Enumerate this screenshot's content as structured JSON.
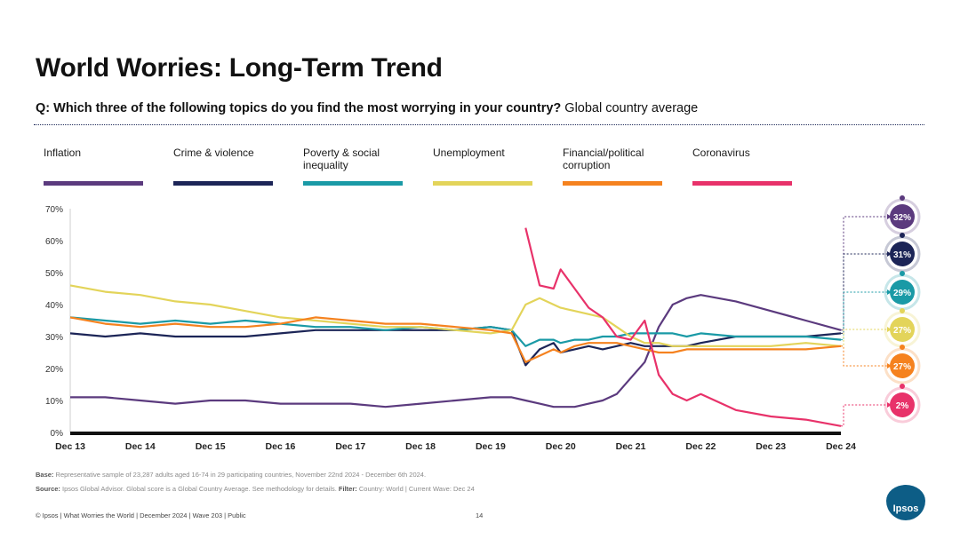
{
  "title": "World Worries: Long-Term Trend",
  "question": {
    "bold": "Q: Which three of the following topics do you find the most worrying in your country?",
    "normal": "Global country average"
  },
  "legend": [
    {
      "label": "Inflation",
      "color": "#5b3a7e"
    },
    {
      "label": "Crime & violence",
      "color": "#1c2557"
    },
    {
      "label": "Poverty & social inequality",
      "color": "#1a9aa6"
    },
    {
      "label": "Unemployment",
      "color": "#e3d45a"
    },
    {
      "label": "Financial/political corruption",
      "color": "#f5821f"
    },
    {
      "label": "Coronavirus",
      "color": "#e8326a"
    }
  ],
  "chart_data": {
    "type": "line",
    "title": "World Worries: Long-Term Trend",
    "ylabel": "",
    "xlabel": "",
    "ylim": [
      0,
      70
    ],
    "y_ticks": [
      "0%",
      "10%",
      "20%",
      "30%",
      "40%",
      "50%",
      "60%",
      "70%"
    ],
    "x_ticks": [
      "Dec 13",
      "Dec 14",
      "Dec 15",
      "Dec 16",
      "Dec 17",
      "Dec 18",
      "Dec 19",
      "Dec 20",
      "Dec 21",
      "Dec 22",
      "Dec 23",
      "Dec 24"
    ],
    "x": [
      0,
      0.5,
      1,
      1.5,
      2,
      2.5,
      3,
      3.5,
      4,
      4.5,
      5,
      5.5,
      6,
      6.3,
      6.5,
      6.7,
      6.9,
      7,
      7.2,
      7.4,
      7.6,
      7.8,
      8,
      8.2,
      8.4,
      8.6,
      8.8,
      9,
      9.5,
      10,
      10.5,
      11
    ],
    "series": [
      {
        "name": "Inflation",
        "color": "#5b3a7e",
        "end_label": "32%",
        "values": [
          11,
          11,
          10,
          9,
          10,
          10,
          9,
          9,
          9,
          8,
          9,
          10,
          11,
          11,
          10,
          9,
          8,
          8,
          8,
          9,
          10,
          12,
          17,
          22,
          33,
          40,
          42,
          43,
          41,
          38,
          35,
          32
        ]
      },
      {
        "name": "Crime & violence",
        "color": "#1c2557",
        "end_label": "31%",
        "values": [
          31,
          30,
          31,
          30,
          30,
          30,
          31,
          32,
          32,
          32,
          32,
          32,
          33,
          32,
          21,
          26,
          28,
          25,
          26,
          27,
          26,
          27,
          28,
          27,
          27,
          27,
          27,
          28,
          30,
          30,
          30,
          31
        ]
      },
      {
        "name": "Poverty & social inequality",
        "color": "#1a9aa6",
        "end_label": "29%",
        "values": [
          36,
          35,
          34,
          35,
          34,
          35,
          34,
          33,
          33,
          32,
          33,
          32,
          33,
          32,
          27,
          29,
          29,
          28,
          29,
          29,
          30,
          30,
          31,
          31,
          31,
          31,
          30,
          31,
          30,
          30,
          30,
          29
        ]
      },
      {
        "name": "Unemployment",
        "color": "#e3d45a",
        "end_label": "27%",
        "values": [
          46,
          44,
          43,
          41,
          40,
          38,
          36,
          35,
          34,
          33,
          33,
          32,
          31,
          32,
          40,
          42,
          40,
          39,
          38,
          37,
          36,
          33,
          30,
          28,
          28,
          27,
          27,
          27,
          27,
          27,
          28,
          27
        ]
      },
      {
        "name": "Financial/political corruption",
        "color": "#f5821f",
        "end_label": "27%",
        "values": [
          36,
          34,
          33,
          34,
          33,
          33,
          34,
          36,
          35,
          34,
          34,
          33,
          32,
          31,
          22,
          24,
          26,
          25,
          27,
          28,
          28,
          28,
          27,
          26,
          25,
          25,
          26,
          26,
          26,
          26,
          26,
          27
        ]
      },
      {
        "name": "Coronavirus",
        "color": "#e8326a",
        "end_label": "2%",
        "values": [
          null,
          null,
          null,
          null,
          null,
          null,
          null,
          null,
          null,
          null,
          null,
          null,
          null,
          null,
          64,
          46,
          45,
          51,
          45,
          39,
          36,
          30,
          29,
          35,
          18,
          12,
          10,
          12,
          7,
          5,
          4,
          2
        ]
      }
    ]
  },
  "footnotes": {
    "base_label": "Base:",
    "base_text": "Representative sample of 23,287 adults aged 16-74 in 29 participating countries, November 22nd 2024 - December 6th 2024.",
    "source_label": "Source:",
    "source_text": "Ipsos Global Advisor. Global score is a Global Country Average. See methodology for details.",
    "filter_label": "Filter:",
    "filter_text": "Country: World | Current Wave: Dec 24"
  },
  "footer": "© Ipsos | What Worries the World | December 2024 | Wave 203 | Public",
  "page_number": "14",
  "logo_text": "Ipsos"
}
